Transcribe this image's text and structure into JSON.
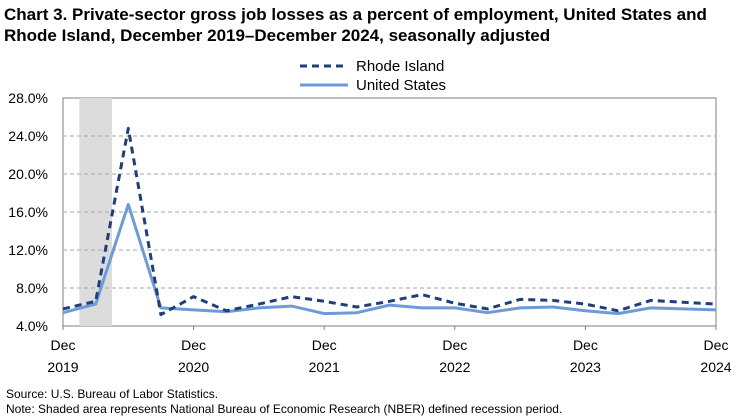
{
  "title": "Chart 3. Private-sector gross job losses as a percent of employment, United States and Rhode Island, December 2019–December 2024, seasonally adjusted",
  "source": "Source: U.S. Bureau of Labor Statistics.",
  "note": "Note: Shaded area represents National Bureau of Economic Research (NBER) defined recession period.",
  "colors": {
    "rhode_island": "#1F3E7A",
    "united_states": "#6E9BD8",
    "recession": "#DCDCDC",
    "grid": "#A6A6A6"
  },
  "chart_data": {
    "type": "line",
    "title": "Private-sector gross job losses as a percent of employment, United States and Rhode Island, December 2019–December 2024, seasonally adjusted",
    "xlabel": "",
    "ylabel": "",
    "ylim": [
      4.0,
      28.0
    ],
    "y_ticks": [
      "4.0%",
      "8.0%",
      "12.0%",
      "16.0%",
      "20.0%",
      "24.0%",
      "28.0%"
    ],
    "y_tick_values": [
      4,
      8,
      12,
      16,
      20,
      24,
      28
    ],
    "x_ticks": [
      {
        "month": "Dec",
        "year": "2019",
        "index": 0
      },
      {
        "month": "Dec",
        "year": "2020",
        "index": 4
      },
      {
        "month": "Dec",
        "year": "2021",
        "index": 8
      },
      {
        "month": "Dec",
        "year": "2022",
        "index": 12
      },
      {
        "month": "Dec",
        "year": "2023",
        "index": 16
      },
      {
        "month": "Dec",
        "year": "2024",
        "index": 20
      }
    ],
    "x": [
      "Dec 2019",
      "Mar 2020",
      "Jun 2020",
      "Sep 2020",
      "Dec 2020",
      "Mar 2021",
      "Jun 2021",
      "Sep 2021",
      "Dec 2021",
      "Mar 2022",
      "Jun 2022",
      "Sep 2022",
      "Dec 2022",
      "Mar 2023",
      "Jun 2023",
      "Sep 2023",
      "Dec 2023",
      "Mar 2024",
      "Jun 2024",
      "Sep 2024",
      "Dec 2024"
    ],
    "recession": {
      "start": 0.5,
      "end": 1.5
    },
    "legend_position": "top-center",
    "grid": true,
    "series": [
      {
        "name": "Rhode Island",
        "style": "dashed",
        "values": [
          5.8,
          6.6,
          24.8,
          5.2,
          7.1,
          5.6,
          6.3,
          7.1,
          6.6,
          6.0,
          6.6,
          7.3,
          6.4,
          5.8,
          6.8,
          6.7,
          6.3,
          5.6,
          6.7,
          6.5,
          6.3
        ]
      },
      {
        "name": "United States",
        "style": "solid",
        "values": [
          5.4,
          6.3,
          16.8,
          5.9,
          5.7,
          5.5,
          5.9,
          6.1,
          5.3,
          5.4,
          6.2,
          5.9,
          5.9,
          5.4,
          5.9,
          6.0,
          5.6,
          5.3,
          5.9,
          5.8,
          5.7
        ]
      }
    ]
  }
}
